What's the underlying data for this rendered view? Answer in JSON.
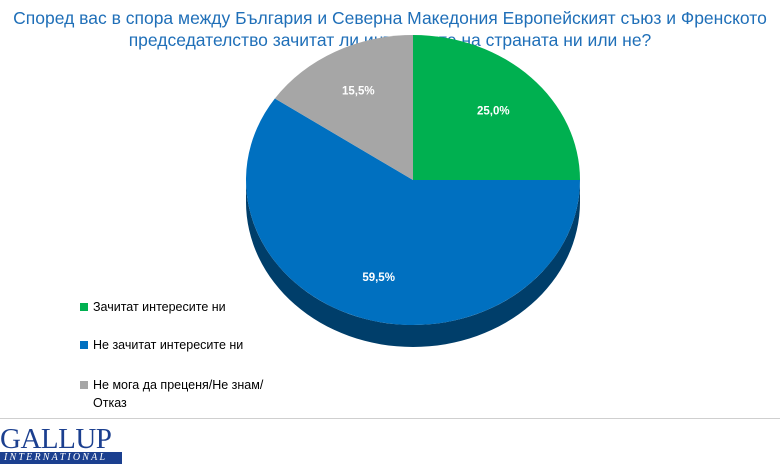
{
  "title_lines": [
    "Според вас в спора между България и Северна Македония Европейският съюз и Френското",
    "председателство зачитат ли интересите на страната ни или не?"
  ],
  "chart_data": {
    "type": "pie",
    "title": "Според вас в спора между България и Северна Македония Европейският съюз и Френското председателство зачитат ли интересите на страната ни или не?",
    "series": [
      {
        "name": "Зачитат интересите  ни",
        "value": 25.0,
        "value_label": "25,0%",
        "color": "#00b050"
      },
      {
        "name": "Не зачитат интересите  ни",
        "value": 59.5,
        "value_label": "59,5%",
        "color": "#0070c0"
      },
      {
        "name": "Не мога да преценя/Не знам/Отказ",
        "value": 15.5,
        "value_label": "15,5%",
        "color": "#a6a6a6"
      }
    ],
    "legend_position": "bottom-left",
    "style": "3d-pie"
  },
  "legend": [
    {
      "label": "Зачитат интересите  ни",
      "color": "#00b050"
    },
    {
      "label": "Не зачитат интересите  ни",
      "color": "#0070c0"
    },
    {
      "label": "Не мога да преценя/Не знам/Отказ",
      "color": "#a6a6a6"
    }
  ],
  "logo": {
    "top": "GALLUP",
    "bottom": "INTERNATIONAL"
  }
}
